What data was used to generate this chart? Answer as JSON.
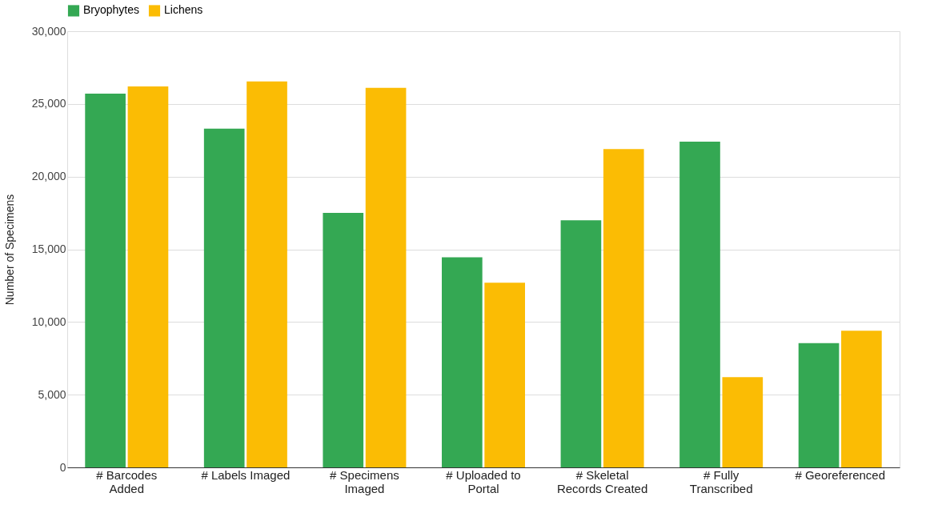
{
  "chart_data": {
    "type": "bar",
    "ylabel": "Number of Specimens",
    "categories": [
      "# Barcodes Added",
      "# Labels Imaged",
      "# Specimens Imaged",
      "# Uploaded to Portal",
      "# Skeletal Records Created",
      "# Fully Transcribed",
      "# Georeferenced"
    ],
    "series": [
      {
        "name": "Bryophytes",
        "color": "#34a853",
        "values": [
          25700,
          23300,
          17500,
          14450,
          17000,
          22400,
          8550
        ]
      },
      {
        "name": "Lichens",
        "color": "#fbbc04",
        "values": [
          26200,
          26550,
          26100,
          12700,
          21900,
          6200,
          9400
        ]
      }
    ],
    "ylim": [
      0,
      30000
    ],
    "yticks": [
      0,
      {
        "value": 5000,
        "label": "5,000"
      },
      {
        "value": 10000,
        "label": "10,000"
      },
      {
        "value": 15000,
        "label": "15,000"
      },
      {
        "value": 20000,
        "label": "20,000"
      },
      {
        "value": 25000,
        "label": "25,000"
      },
      {
        "value": 30000,
        "label": "30,000"
      }
    ],
    "grid": "y",
    "legend": "top"
  }
}
